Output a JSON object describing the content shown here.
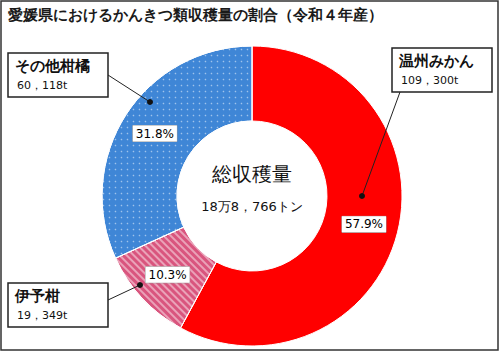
{
  "chart_data": {
    "type": "pie",
    "title": "愛媛県におけるかんきつ類収穫量の割合（令和４年産）",
    "center_title": "総収穫量",
    "total": 188766,
    "total_label": "18万8，766トン",
    "categories": [
      "温州みかん",
      "伊予柑",
      "その他柑橘"
    ],
    "values": [
      57.9,
      10.3,
      31.8
    ],
    "value_labels": [
      "57.9%",
      "10.3%",
      "31.8%"
    ],
    "amounts": [
      109300,
      19349,
      60118
    ],
    "amount_labels": [
      "109，300t",
      "19，349t",
      "60，118t"
    ],
    "colors": [
      "#ff0000",
      "#d9557e",
      "#3f86d6"
    ],
    "data_labels": true
  }
}
